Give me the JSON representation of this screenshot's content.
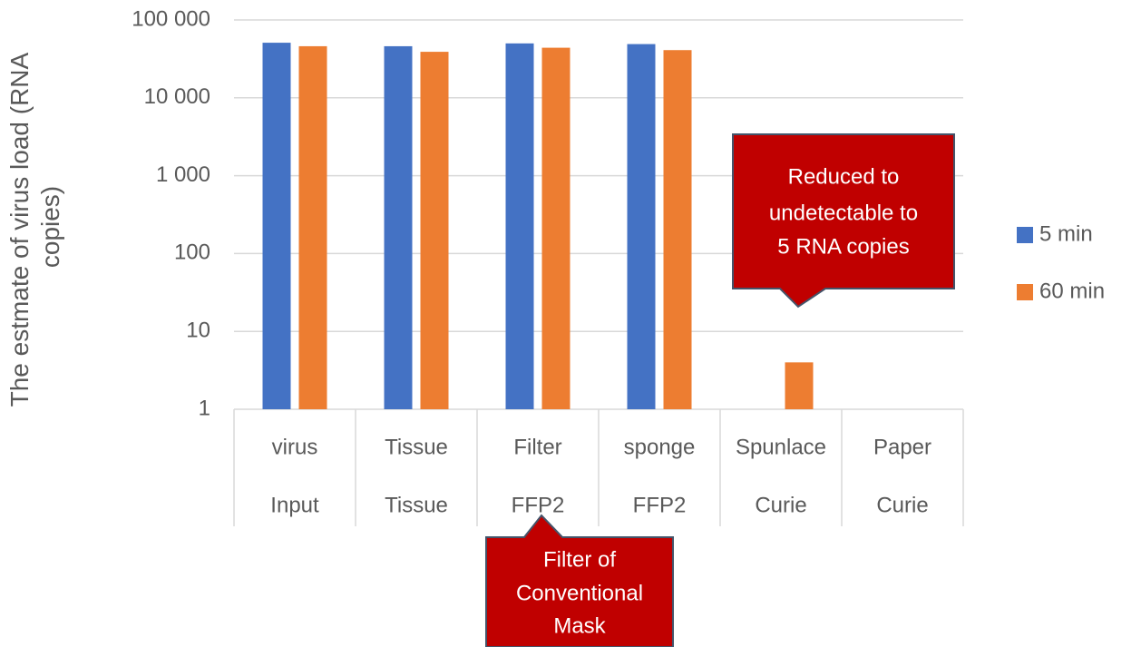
{
  "chart_data": {
    "type": "bar",
    "ylabel": [
      "The estmate of virus load (RNA",
      "copies)"
    ],
    "categories": [
      "virus",
      "Tissue",
      "Filter",
      "sponge",
      "Spunlace",
      "Paper"
    ],
    "categories2": [
      "Input",
      "Tissue",
      "FFP2",
      "FFP2",
      "Curie",
      "Curie"
    ],
    "series": [
      {
        "name": "5 min",
        "color": "#4472c4",
        "values": [
          51000,
          46000,
          50000,
          49000,
          null,
          null
        ]
      },
      {
        "name": "60 min",
        "color": "#ed7d31",
        "values": [
          46000,
          39000,
          44000,
          41000,
          4,
          null
        ]
      }
    ],
    "log_scale": true,
    "ylim": [
      1,
      100000
    ],
    "yticks": [
      1,
      10,
      100,
      {
        "value": 1000,
        "label": "1 000"
      },
      {
        "value": 10000,
        "label": "10 000"
      },
      {
        "value": 100000,
        "label": "100 000"
      }
    ],
    "grid": true,
    "legend": "right",
    "annotations": [
      {
        "lines": [
          "Reduced to",
          "undetectable to",
          "5 RNA copies"
        ]
      },
      {
        "lines": [
          "Filter of",
          "Conventional",
          "Mask"
        ]
      }
    ]
  }
}
